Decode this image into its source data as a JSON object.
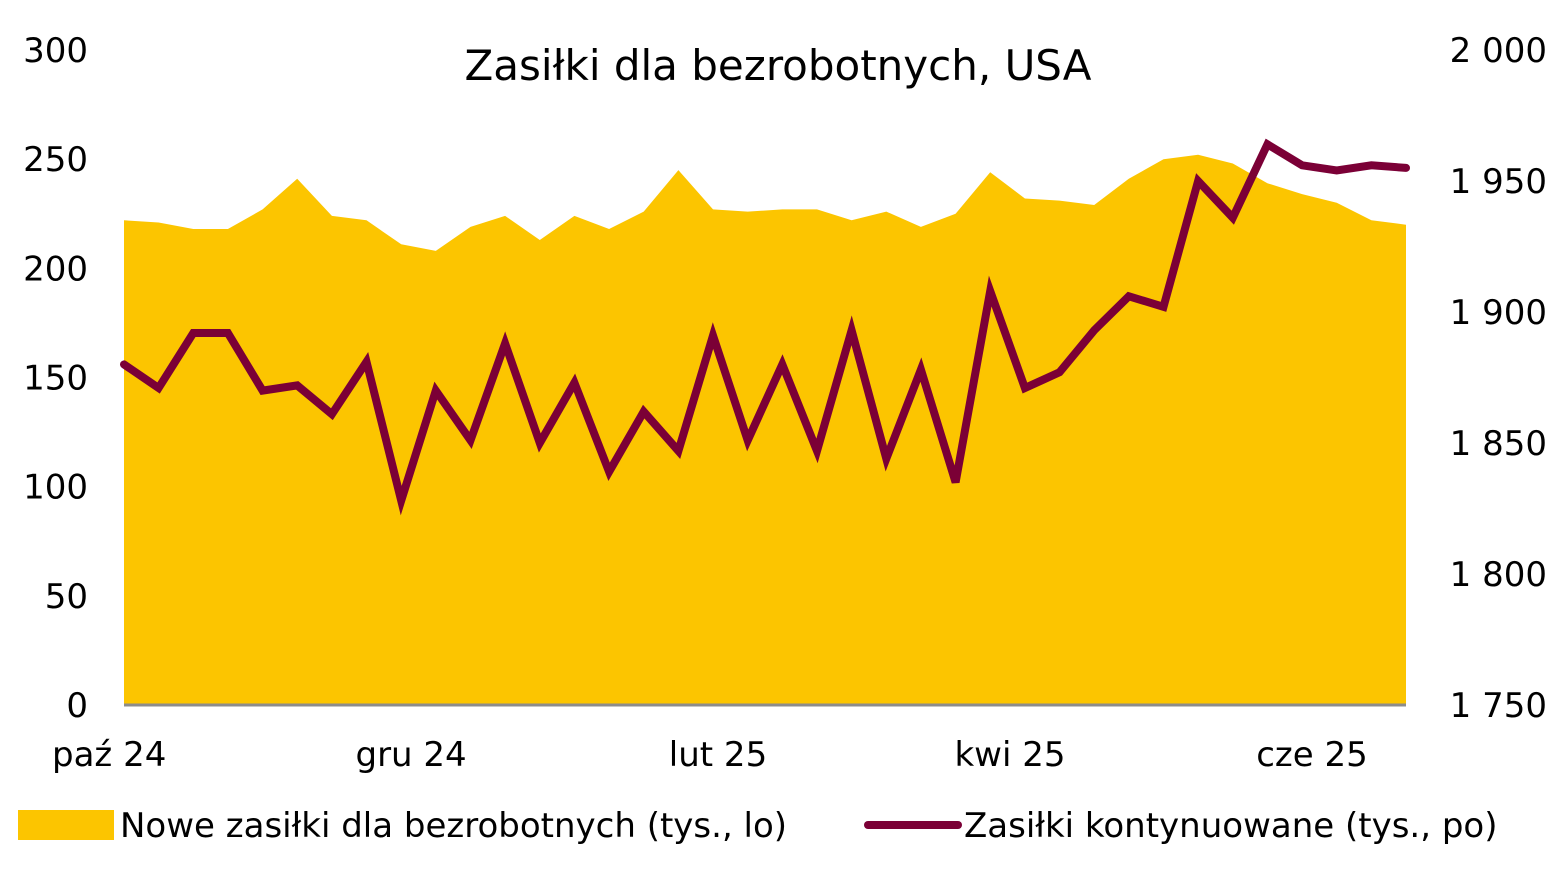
{
  "chart_data": {
    "type": "area",
    "title": "Zasiłki dla bezrobotnych, USA",
    "x": [
      "2024-10-04",
      "2024-10-11",
      "2024-10-18",
      "2024-10-25",
      "2024-11-01",
      "2024-11-08",
      "2024-11-15",
      "2024-11-22",
      "2024-11-29",
      "2024-12-06",
      "2024-12-13",
      "2024-12-20",
      "2024-12-27",
      "2025-01-03",
      "2025-01-10",
      "2025-01-17",
      "2025-01-24",
      "2025-01-31",
      "2025-02-07",
      "2025-02-14",
      "2025-02-21",
      "2025-02-28",
      "2025-03-07",
      "2025-03-14",
      "2025-03-21",
      "2025-03-28",
      "2025-04-04",
      "2025-04-11",
      "2025-04-18",
      "2025-04-25",
      "2025-05-02",
      "2025-05-09",
      "2025-05-16",
      "2025-05-23",
      "2025-05-30",
      "2025-06-06",
      "2025-06-13",
      "2025-06-20"
    ],
    "x_tick_labels": [
      "paź 24",
      "gru 24",
      "lut 25",
      "kwi 25",
      "cze 25"
    ],
    "y_left": {
      "ylim": [
        0,
        300
      ],
      "ticks": [
        "0",
        "50",
        "100",
        "150",
        "200",
        "250",
        "300"
      ]
    },
    "y_right": {
      "ylim": [
        1750,
        2000
      ],
      "ticks": [
        "1 750",
        "1 800",
        "1 850",
        "1 900",
        "1 950",
        "2 000"
      ]
    },
    "grid": false,
    "legend_position": "bottom",
    "series": [
      {
        "name": "Nowe zasiłki dla bezrobotnych (tys., lo)",
        "type": "area",
        "axis": "left",
        "color": "#FCC500",
        "values": [
          222,
          221,
          218,
          218,
          227,
          241,
          224,
          222,
          211,
          208,
          219,
          224,
          213,
          224,
          218,
          226,
          245,
          227,
          226,
          227,
          227,
          222,
          226,
          219,
          225,
          244,
          232,
          231,
          229,
          241,
          250,
          252,
          248,
          239,
          234,
          230,
          222,
          220
        ]
      },
      {
        "name": "Zasiłki kontynuowane (tys., po)",
        "type": "line",
        "axis": "right",
        "color": "#7B0036",
        "values": [
          1880,
          1871,
          1892,
          1892,
          1870,
          1872,
          1861,
          1881,
          1828,
          1870,
          1851,
          1888,
          1850,
          1873,
          1839,
          1862,
          1847,
          1891,
          1851,
          1880,
          1847,
          1893,
          1844,
          1878,
          1835,
          1908,
          1871,
          1877,
          1893,
          1906,
          1902,
          1950,
          1936,
          1964,
          1956,
          1954,
          1956,
          1955
        ]
      }
    ]
  }
}
